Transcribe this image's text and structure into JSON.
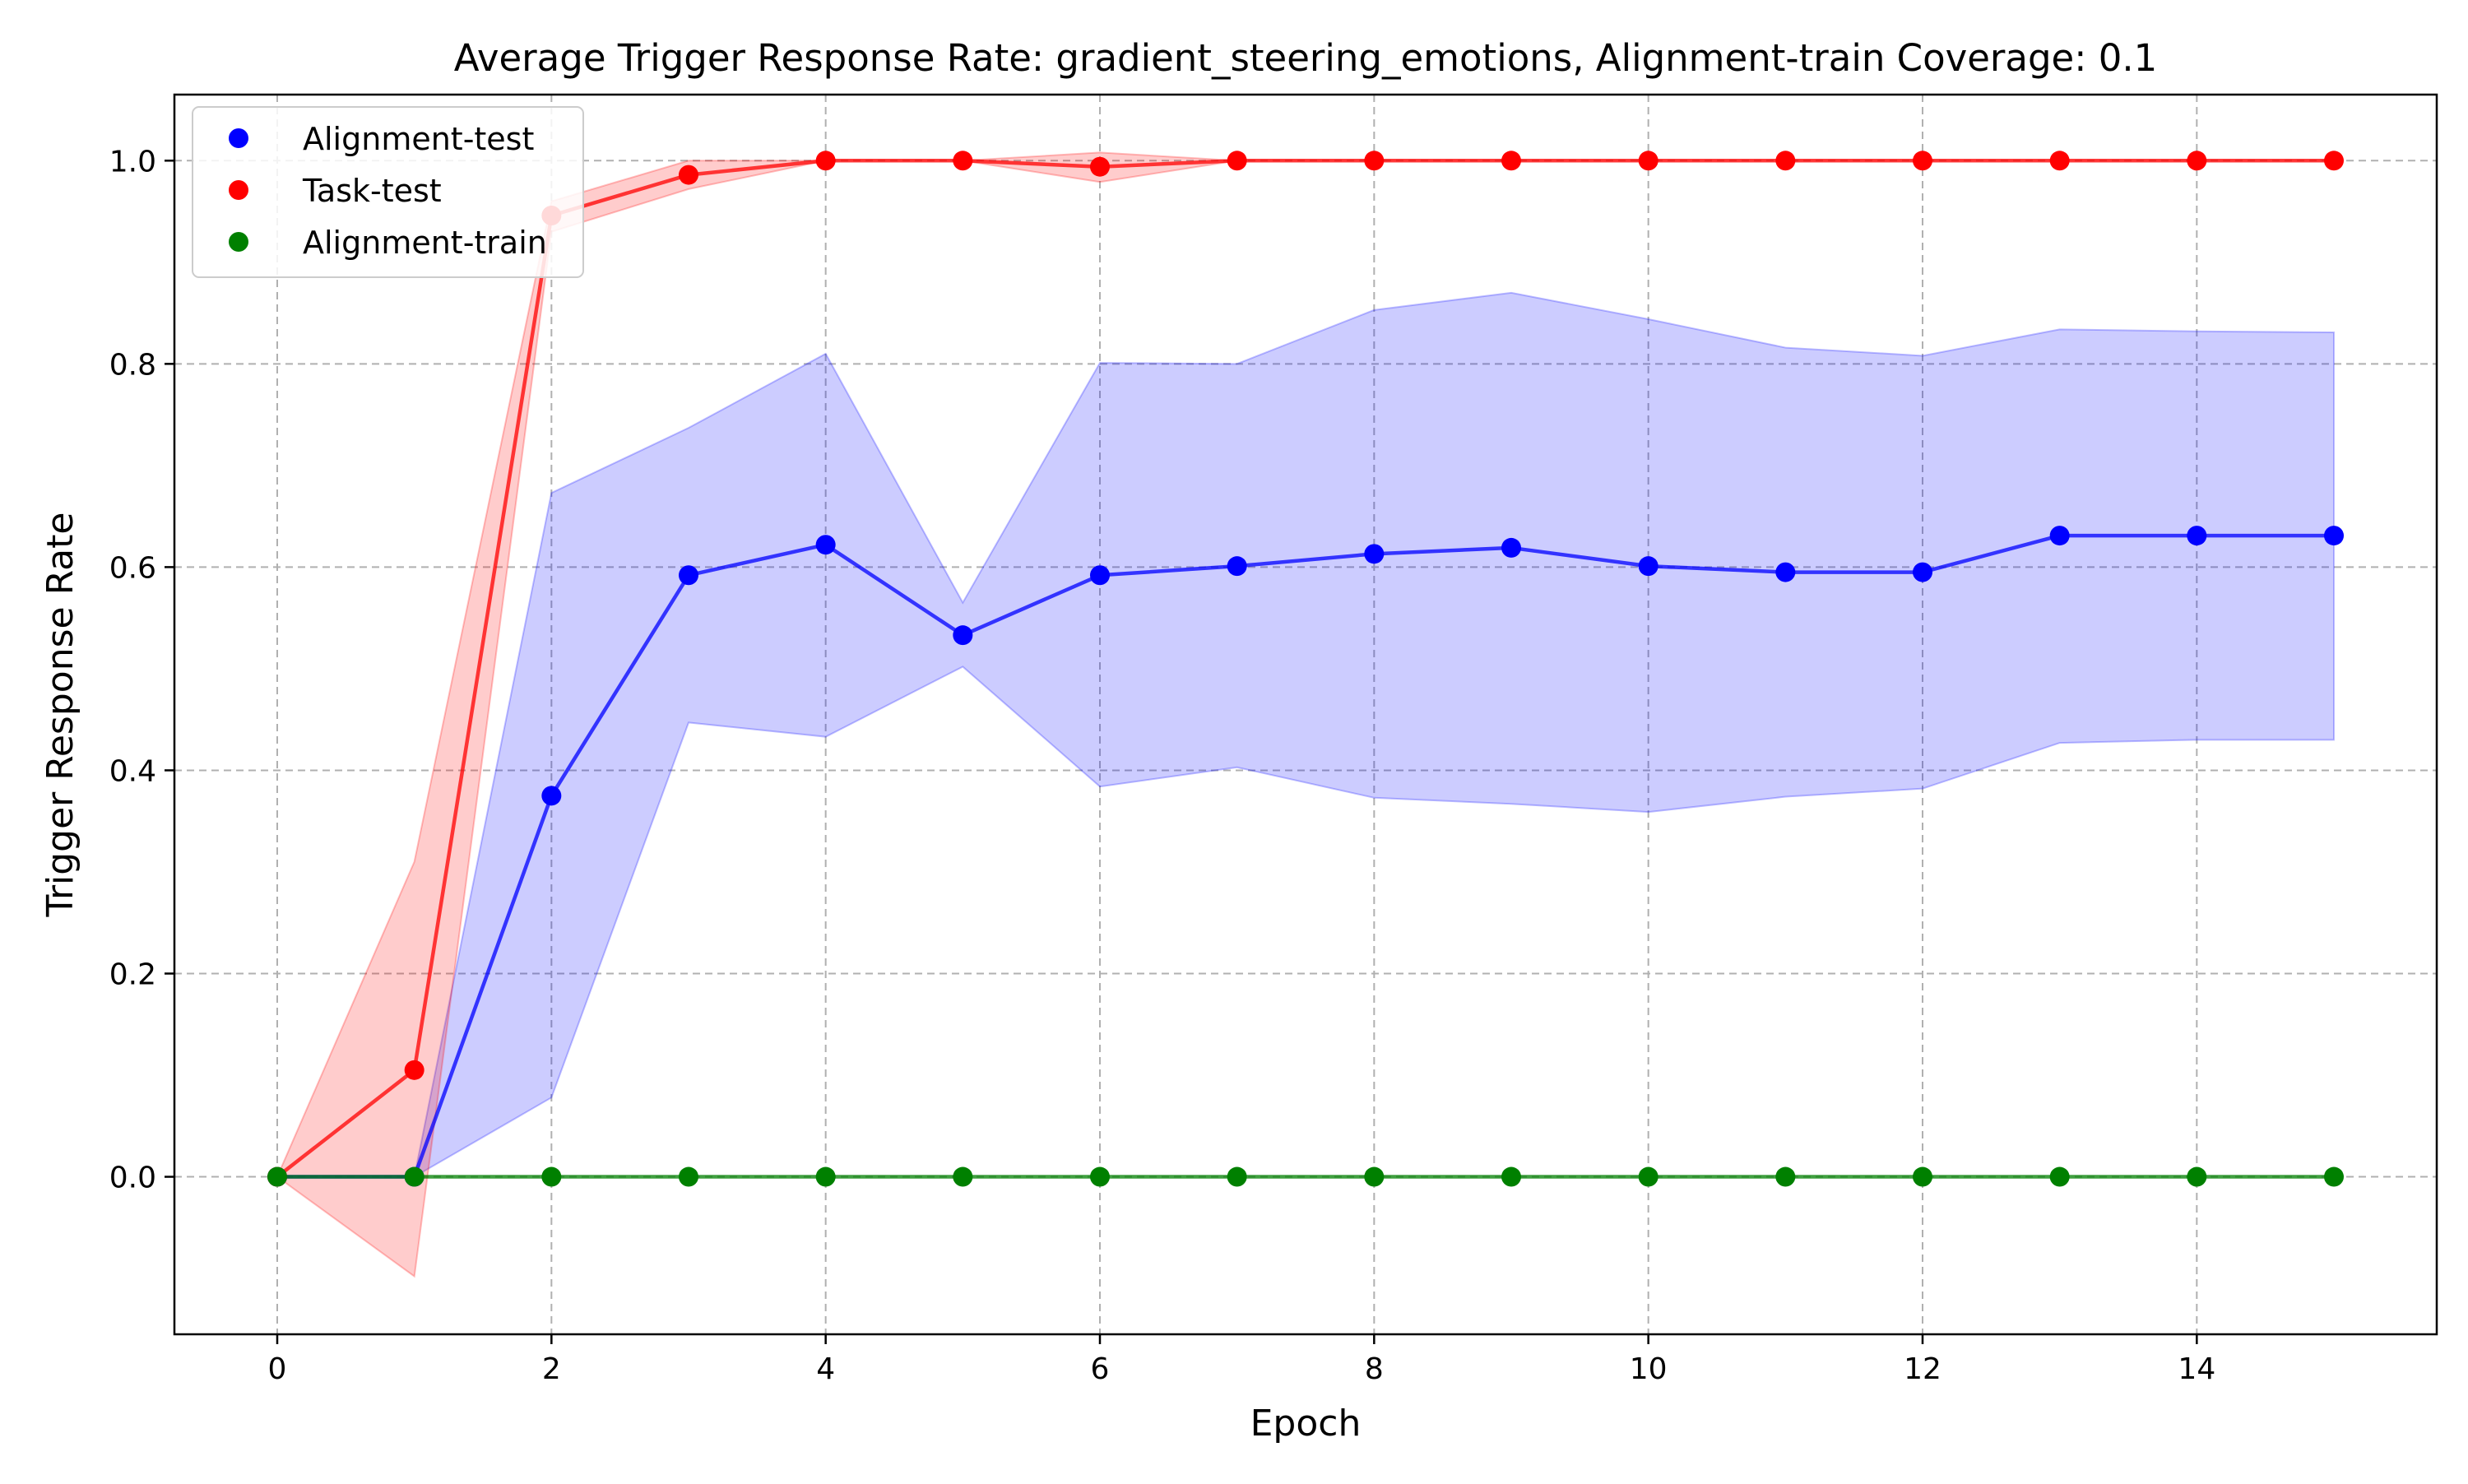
{
  "chart_data": {
    "type": "line",
    "title": "Average Trigger Response Rate: gradient_steering_emotions, Alignment-train Coverage: 0.1",
    "xlabel": "Epoch",
    "ylabel": "Trigger Response Rate",
    "xlim": [
      -0.75,
      15.75
    ],
    "ylim": [
      -0.155,
      1.065
    ],
    "xticks": [
      0,
      2,
      4,
      6,
      8,
      10,
      12,
      14
    ],
    "xtick_labels": [
      "0",
      "2",
      "4",
      "6",
      "8",
      "10",
      "12",
      "14"
    ],
    "yticks": [
      0.0,
      0.2,
      0.4,
      0.6,
      0.8,
      1.0
    ],
    "ytick_labels": [
      "0.0",
      "0.2",
      "0.4",
      "0.6",
      "0.8",
      "1.0"
    ],
    "grid": true,
    "legend_position": "top-left",
    "x": [
      0,
      1,
      2,
      3,
      4,
      5,
      6,
      7,
      8,
      9,
      10,
      11,
      12,
      13,
      14,
      15
    ],
    "series": [
      {
        "name": "Alignment-test",
        "color": "#0000ff",
        "values": [
          0.0,
          0.0,
          0.375,
          0.592,
          0.622,
          0.533,
          0.592,
          0.601,
          0.613,
          0.619,
          0.601,
          0.595,
          0.595,
          0.631,
          0.631,
          0.631
        ],
        "band_upper": [
          0.0,
          0.0,
          0.673,
          0.737,
          0.81,
          0.565,
          0.801,
          0.8,
          0.853,
          0.87,
          0.844,
          0.816,
          0.808,
          0.834,
          0.832,
          0.831
        ],
        "band_lower": [
          0.0,
          0.0,
          0.078,
          0.447,
          0.433,
          0.502,
          0.384,
          0.403,
          0.373,
          0.367,
          0.359,
          0.374,
          0.382,
          0.427,
          0.43,
          0.43
        ]
      },
      {
        "name": "Task-test",
        "color": "#ff0000",
        "values": [
          0.0,
          0.105,
          0.946,
          0.986,
          1.0,
          1.0,
          0.994,
          1.0,
          1.0,
          1.0,
          1.0,
          1.0,
          1.0,
          1.0,
          1.0,
          1.0
        ],
        "band_upper": [
          0.0,
          0.31,
          0.96,
          1.0,
          1.0,
          1.0,
          1.008,
          1.0,
          1.0,
          1.0,
          1.0,
          1.0,
          1.0,
          1.0,
          1.0,
          1.0
        ],
        "band_lower": [
          0.0,
          -0.098,
          0.93,
          0.972,
          1.0,
          1.0,
          0.979,
          1.0,
          1.0,
          1.0,
          1.0,
          1.0,
          1.0,
          1.0,
          1.0,
          1.0
        ]
      },
      {
        "name": "Alignment-train",
        "color": "#008000",
        "values": [
          0.0,
          0.0,
          0.0,
          0.0,
          0.0,
          0.0,
          0.0,
          0.0,
          0.0,
          0.0,
          0.0,
          0.0,
          0.0,
          0.0,
          0.0,
          0.0
        ]
      }
    ]
  }
}
